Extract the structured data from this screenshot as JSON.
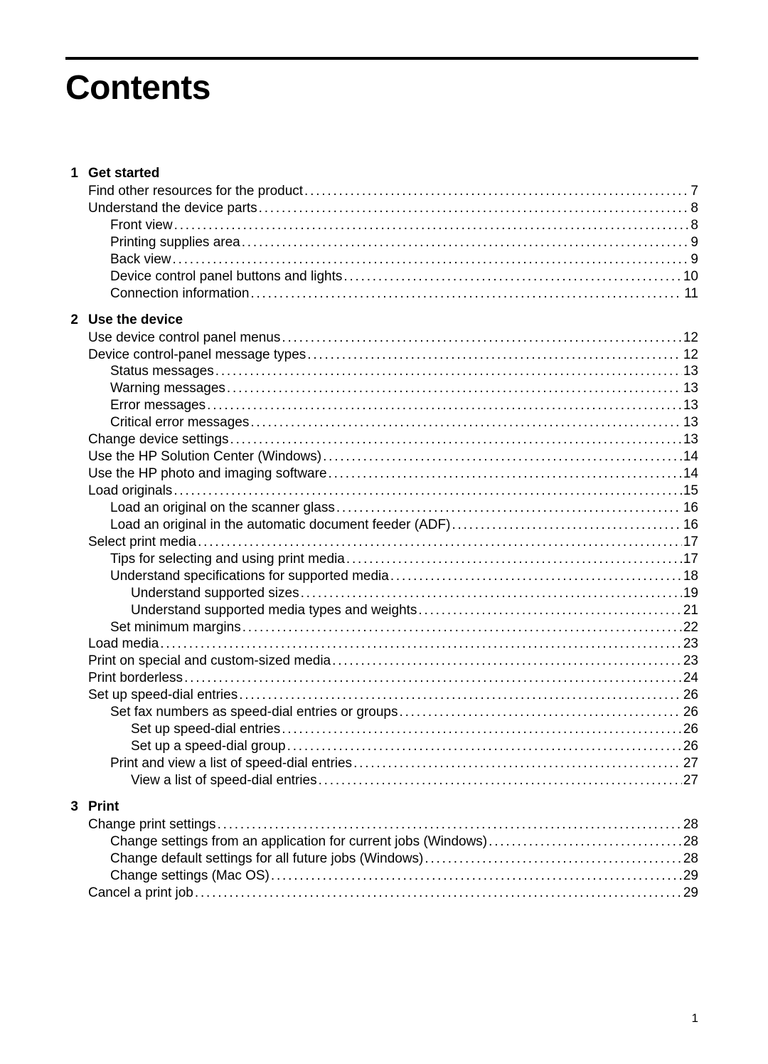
{
  "title": "Contents",
  "page_number": "1",
  "indent_widths": {
    "l1": 32,
    "l2": 63,
    "l3": 92
  },
  "font_size": 19,
  "sections": [
    {
      "num": "1",
      "title": "Get started",
      "entries": [
        {
          "level": "l1",
          "label": "Find other resources for the product",
          "page": "7"
        },
        {
          "level": "l1",
          "label": "Understand the device parts",
          "page": "8"
        },
        {
          "level": "l2",
          "label": "Front view",
          "page": "8"
        },
        {
          "level": "l2",
          "label": "Printing supplies area",
          "page": "9"
        },
        {
          "level": "l2",
          "label": "Back view",
          "page": "9"
        },
        {
          "level": "l2",
          "label": "Device control panel buttons and lights",
          "page": "10"
        },
        {
          "level": "l2",
          "label": "Connection information",
          "page": "11"
        }
      ]
    },
    {
      "num": "2",
      "title": "Use the device",
      "entries": [
        {
          "level": "l1",
          "label": "Use device control panel menus",
          "page": "12"
        },
        {
          "level": "l1",
          "label": "Device control-panel message types",
          "page": "12"
        },
        {
          "level": "l2",
          "label": "Status messages",
          "page": "13"
        },
        {
          "level": "l2",
          "label": "Warning messages",
          "page": "13"
        },
        {
          "level": "l2",
          "label": "Error messages",
          "page": "13"
        },
        {
          "level": "l2",
          "label": "Critical error messages",
          "page": "13"
        },
        {
          "level": "l1",
          "label": "Change device settings",
          "page": "13"
        },
        {
          "level": "l1",
          "label": "Use the HP Solution Center (Windows)",
          "page": "14"
        },
        {
          "level": "l1",
          "label": "Use the HP photo and imaging software",
          "page": "14"
        },
        {
          "level": "l1",
          "label": "Load originals",
          "page": "15"
        },
        {
          "level": "l2",
          "label": "Load an original on the scanner glass",
          "page": "16"
        },
        {
          "level": "l2",
          "label": "Load an original in the automatic document feeder (ADF)",
          "page": "16"
        },
        {
          "level": "l1",
          "label": "Select print media",
          "page": "17"
        },
        {
          "level": "l2",
          "label": "Tips for selecting and using print media",
          "page": "17"
        },
        {
          "level": "l2",
          "label": "Understand specifications for supported media",
          "page": "18"
        },
        {
          "level": "l3",
          "label": "Understand supported sizes",
          "page": "19"
        },
        {
          "level": "l3",
          "label": "Understand supported media types and weights",
          "page": "21"
        },
        {
          "level": "l2",
          "label": "Set minimum margins",
          "page": "22"
        },
        {
          "level": "l1",
          "label": "Load media",
          "page": "23"
        },
        {
          "level": "l1",
          "label": "Print on special and custom-sized media",
          "page": "23"
        },
        {
          "level": "l1",
          "label": "Print borderless",
          "page": "24"
        },
        {
          "level": "l1",
          "label": "Set up speed-dial entries",
          "page": "26"
        },
        {
          "level": "l2",
          "label": "Set fax numbers as speed-dial entries or groups",
          "page": "26"
        },
        {
          "level": "l3",
          "label": "Set up speed-dial entries",
          "page": "26"
        },
        {
          "level": "l3",
          "label": "Set up a speed-dial group",
          "page": "26"
        },
        {
          "level": "l2",
          "label": "Print and view a list of speed-dial entries",
          "page": "27"
        },
        {
          "level": "l3",
          "label": "View a list of speed-dial entries",
          "page": "27"
        }
      ]
    },
    {
      "num": "3",
      "title": "Print",
      "entries": [
        {
          "level": "l1",
          "label": "Change print settings",
          "page": "28"
        },
        {
          "level": "l2",
          "label": "Change settings from an application for current jobs (Windows)",
          "page": "28"
        },
        {
          "level": "l2",
          "label": "Change default settings for all future jobs (Windows)",
          "page": "28"
        },
        {
          "level": "l2",
          "label": "Change settings (Mac OS)",
          "page": "29"
        },
        {
          "level": "l1",
          "label": "Cancel a print job",
          "page": "29"
        }
      ]
    }
  ]
}
